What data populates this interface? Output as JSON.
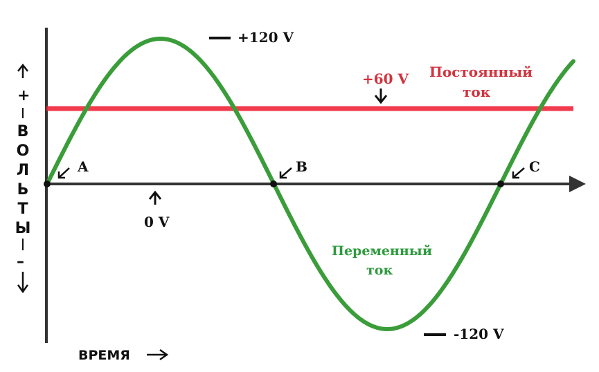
{
  "diagram": {
    "y_axis_label": "ВОЛЬТЫ",
    "y_axis_signs": [
      "+",
      "–"
    ],
    "x_axis_label": "ВРЕМЯ",
    "labels": {
      "max": "+120 V",
      "min": "-120 V",
      "zero": "0 V",
      "dc_value": "+60 V",
      "dc_line1": "Постоянный",
      "dc_line2": "ток",
      "ac_line1": "Переменный",
      "ac_line2": "ток",
      "point_a": "A",
      "point_b": "B",
      "point_c": "C"
    },
    "colors": {
      "ac_curve": "#3a9d3a",
      "dc_line": "#f0263a",
      "axes": "#333333",
      "dc_text": "#d2333f",
      "ac_text": "#2f9a3f"
    }
  }
}
